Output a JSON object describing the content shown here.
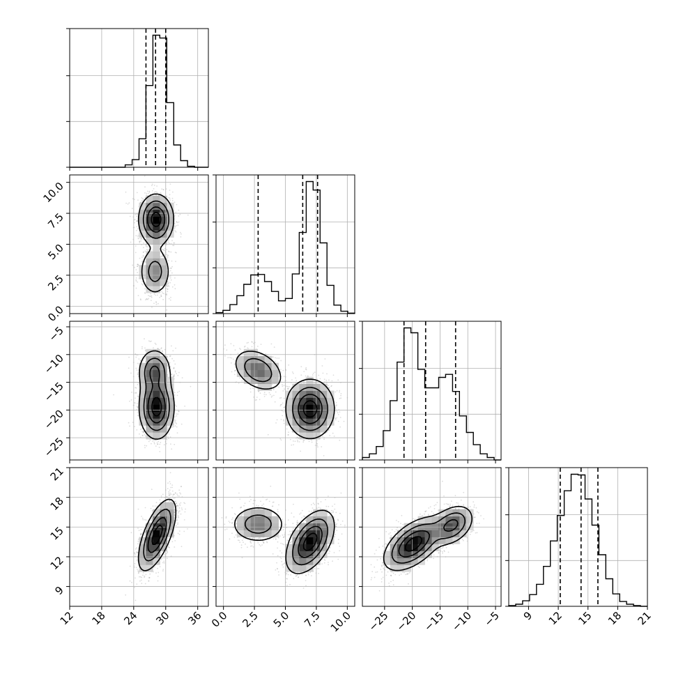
{
  "chart_data": {
    "type": "corner",
    "title": "",
    "grid": true,
    "quantiles": [
      0.16,
      0.5,
      0.84
    ],
    "parameters": [
      {
        "index": 0,
        "range": [
          12,
          38
        ],
        "ticks": [
          {
            "v": 12,
            "label": "12"
          },
          {
            "v": 18,
            "label": "18"
          },
          {
            "v": 24,
            "label": "24"
          },
          {
            "v": 30,
            "label": "30"
          },
          {
            "v": 36,
            "label": "36"
          }
        ],
        "quantile_values": [
          26.3,
          28.1,
          30.0
        ],
        "histogram": {
          "edges": [
            12,
            13.3,
            14.6,
            15.9,
            17.2,
            18.5,
            19.8,
            21.1,
            22.4,
            23.7,
            25,
            26.3,
            27.6,
            28.9,
            30.2,
            31.5,
            32.8,
            34.1,
            35.4,
            36.7,
            38
          ],
          "counts": [
            0,
            0,
            0,
            0,
            0,
            0,
            0,
            0,
            5,
            16,
            60,
            172,
            278,
            272,
            136,
            47,
            14,
            2,
            0,
            0
          ]
        }
      },
      {
        "index": 1,
        "range": [
          -0.6,
          10.6
        ],
        "ticks": [
          {
            "v": 0,
            "label": "0.0"
          },
          {
            "v": 2.5,
            "label": "2.5"
          },
          {
            "v": 5,
            "label": "5.0"
          },
          {
            "v": 7.5,
            "label": "7.5"
          },
          {
            "v": 10,
            "label": "10.0"
          }
        ],
        "quantile_values": [
          2.8,
          6.4,
          7.6
        ],
        "histogram": {
          "edges": [
            -0.6,
            -0.04,
            0.52,
            1.08,
            1.64,
            2.2,
            2.76,
            3.32,
            3.88,
            4.44,
            5.0,
            5.56,
            6.12,
            6.68,
            7.24,
            7.8,
            8.36,
            8.92,
            9.48,
            10.04,
            10.6
          ],
          "counts": [
            2,
            7,
            19,
            38,
            62,
            82,
            83,
            68,
            47,
            27,
            32,
            84,
            172,
            280,
            262,
            150,
            60,
            18,
            5,
            1
          ]
        }
      },
      {
        "index": 2,
        "range": [
          -29,
          -4
        ],
        "ticks": [
          {
            "v": -25,
            "label": "−25"
          },
          {
            "v": -20,
            "label": "−20"
          },
          {
            "v": -15,
            "label": "−15"
          },
          {
            "v": -10,
            "label": "−10"
          },
          {
            "v": -5,
            "label": "−5"
          }
        ],
        "quantile_values": [
          -21.5,
          -17.6,
          -12.2
        ],
        "histogram": {
          "edges": [
            -29,
            -27.75,
            -26.5,
            -25.25,
            -24,
            -22.75,
            -21.5,
            -20.25,
            -19,
            -17.75,
            -16.5,
            -15.25,
            -14,
            -12.75,
            -11.5,
            -10.25,
            -9,
            -7.75,
            -6.5,
            -5.25,
            -4
          ],
          "counts": [
            4,
            10,
            22,
            48,
            97,
            160,
            216,
            208,
            148,
            118,
            118,
            135,
            140,
            112,
            72,
            45,
            25,
            10,
            4,
            0
          ]
        }
      },
      {
        "index": 3,
        "range": [
          7,
          21
        ],
        "ticks": [
          {
            "v": 9,
            "label": "9"
          },
          {
            "v": 12,
            "label": "12"
          },
          {
            "v": 15,
            "label": "15"
          },
          {
            "v": 18,
            "label": "18"
          },
          {
            "v": 21,
            "label": "21"
          }
        ],
        "quantile_values": [
          12.2,
          14.3,
          16.0
        ],
        "histogram": {
          "edges": [
            7,
            7.7,
            8.4,
            9.1,
            9.8,
            10.5,
            11.2,
            11.9,
            12.6,
            13.3,
            14.0,
            14.7,
            15.4,
            16.1,
            16.8,
            17.5,
            18.2,
            18.9,
            19.6,
            20.3,
            21
          ],
          "counts": [
            1,
            3,
            8,
            17,
            32,
            58,
            95,
            132,
            168,
            192,
            191,
            156,
            118,
            75,
            40,
            18,
            7,
            3,
            1,
            0
          ]
        }
      }
    ],
    "pairs": [
      {
        "row": 1,
        "col": 0,
        "modes": [
          {
            "mx": 28.2,
            "my": 7.0,
            "sx": 1.6,
            "sy": 1.0,
            "rho": 0,
            "w": 0.7
          },
          {
            "mx": 28.0,
            "my": 2.8,
            "sx": 1.5,
            "sy": 1.0,
            "rho": 0,
            "w": 0.3
          }
        ]
      },
      {
        "row": 2,
        "col": 0,
        "modes": [
          {
            "mx": 28.3,
            "my": -19.5,
            "sx": 1.6,
            "sy": 2.8,
            "rho": 0,
            "w": 0.7
          },
          {
            "mx": 27.9,
            "my": -13.0,
            "sx": 1.5,
            "sy": 2.0,
            "rho": 0,
            "w": 0.3
          }
        ]
      },
      {
        "row": 2,
        "col": 1,
        "modes": [
          {
            "mx": 7.0,
            "my": -19.8,
            "sx": 0.95,
            "sy": 2.6,
            "rho": 0,
            "w": 0.7
          },
          {
            "mx": 2.8,
            "my": -12.8,
            "sx": 1.0,
            "sy": 1.9,
            "rho": -0.35,
            "w": 0.3
          }
        ]
      },
      {
        "row": 3,
        "col": 0,
        "modes": [
          {
            "mx": 28.4,
            "my": 14.2,
            "sx": 1.7,
            "sy": 1.75,
            "rho": 0.65,
            "w": 1.0
          }
        ]
      },
      {
        "row": 3,
        "col": 1,
        "modes": [
          {
            "mx": 7.0,
            "my": 13.5,
            "sx": 0.95,
            "sy": 1.55,
            "rho": 0.5,
            "w": 0.7
          },
          {
            "mx": 2.8,
            "my": 15.3,
            "sx": 1.1,
            "sy": 0.95,
            "rho": 0,
            "w": 0.3
          }
        ]
      },
      {
        "row": 3,
        "col": 2,
        "modes": [
          {
            "mx": -19.8,
            "my": 13.3,
            "sx": 2.6,
            "sy": 1.3,
            "rho": 0.55,
            "w": 0.7
          },
          {
            "mx": -12.8,
            "my": 15.2,
            "sx": 1.9,
            "sy": 1.0,
            "rho": 0.35,
            "w": 0.3
          }
        ]
      }
    ]
  }
}
